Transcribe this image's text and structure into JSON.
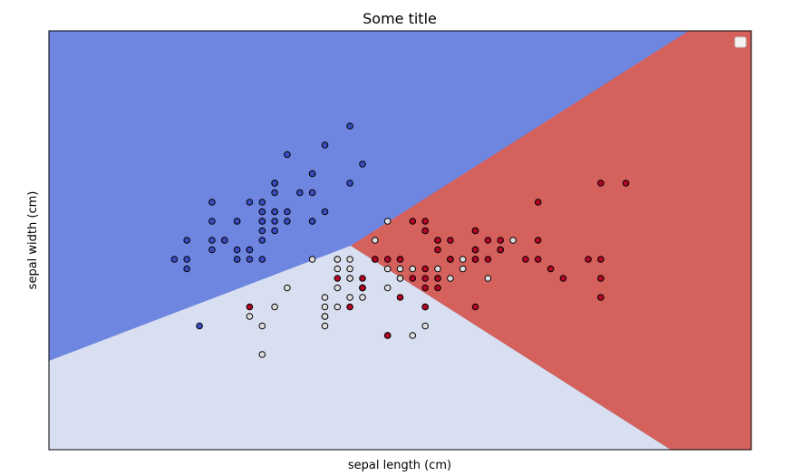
{
  "chart_data": {
    "type": "scatter",
    "title": "Some title",
    "xlabel": "sepal length (cm)",
    "ylabel": "sepal width (cm)",
    "xlim": [
      3.3,
      8.9
    ],
    "ylim": [
      1.0,
      5.4
    ],
    "x_ticks_visible": false,
    "y_ticks_visible": false,
    "grid": false,
    "legend": {
      "placement": "top-right",
      "entries": []
    },
    "decision_regions": [
      {
        "class": 0,
        "color": "#6f86e0"
      },
      {
        "class": 1,
        "color": "#d7dff0"
      },
      {
        "class": 2,
        "color": "#d5615c"
      }
    ],
    "series": [
      {
        "class": 0,
        "color": "#3b4cc0",
        "x": [
          5.1,
          4.9,
          4.7,
          4.6,
          5.0,
          5.4,
          4.6,
          5.0,
          4.4,
          4.9,
          5.4,
          4.8,
          4.8,
          4.3,
          5.8,
          5.7,
          5.4,
          5.1,
          5.7,
          5.1,
          5.4,
          5.1,
          4.6,
          5.1,
          4.8,
          5.0,
          5.0,
          5.2,
          5.2,
          4.7,
          4.8,
          5.4,
          5.2,
          5.5,
          4.9,
          5.0,
          5.5,
          4.9,
          4.4,
          5.1,
          5.0,
          4.5,
          4.4,
          5.0,
          5.1,
          4.8,
          5.1,
          4.6,
          5.3,
          5.0
        ],
        "y": [
          3.5,
          3.0,
          3.2,
          3.1,
          3.6,
          3.9,
          3.4,
          3.4,
          2.9,
          3.1,
          3.7,
          3.4,
          3.0,
          3.0,
          4.0,
          4.4,
          3.9,
          3.5,
          3.8,
          3.8,
          3.4,
          3.7,
          3.6,
          3.3,
          3.4,
          3.0,
          3.4,
          3.5,
          3.4,
          3.2,
          3.1,
          3.4,
          4.1,
          4.2,
          3.1,
          3.2,
          3.5,
          3.6,
          3.0,
          3.4,
          3.5,
          2.3,
          3.2,
          3.5,
          3.8,
          3.0,
          3.8,
          3.2,
          3.7,
          3.3
        ]
      },
      {
        "class": 1,
        "color": "#dddddd",
        "x": [
          7.0,
          6.4,
          6.9,
          5.5,
          6.5,
          5.7,
          6.3,
          4.9,
          6.6,
          5.2,
          5.0,
          5.9,
          6.0,
          6.1,
          5.6,
          6.7,
          5.6,
          5.8,
          6.2,
          5.6,
          5.9,
          6.1,
          6.3,
          6.1,
          6.4,
          6.6,
          6.8,
          6.7,
          6.0,
          5.7,
          5.5,
          5.5,
          5.8,
          6.0,
          5.4,
          6.0,
          6.7,
          6.3,
          5.6,
          5.5,
          5.5,
          6.1,
          5.8,
          5.0,
          5.6,
          5.7,
          5.7,
          6.2,
          5.1,
          5.7
        ],
        "y": [
          3.2,
          3.2,
          3.1,
          2.3,
          2.8,
          2.8,
          3.3,
          2.4,
          2.9,
          2.7,
          2.0,
          3.0,
          2.2,
          2.9,
          2.9,
          3.1,
          3.0,
          2.7,
          2.2,
          2.5,
          3.2,
          2.8,
          2.5,
          2.8,
          2.9,
          3.0,
          2.8,
          3.0,
          2.9,
          2.6,
          2.4,
          2.4,
          2.7,
          2.7,
          3.0,
          3.4,
          3.1,
          2.3,
          3.0,
          2.5,
          2.6,
          3.0,
          2.6,
          2.3,
          2.7,
          3.0,
          2.9,
          2.9,
          2.5,
          2.8
        ]
      },
      {
        "class": 2,
        "color": "#b40426",
        "x": [
          6.3,
          5.8,
          7.1,
          6.3,
          6.5,
          7.6,
          4.9,
          7.3,
          6.7,
          7.2,
          6.5,
          6.4,
          6.8,
          5.7,
          5.8,
          6.4,
          6.5,
          7.7,
          7.7,
          6.0,
          6.9,
          5.6,
          7.7,
          6.3,
          6.7,
          7.2,
          6.2,
          6.1,
          6.4,
          7.2,
          7.4,
          7.9,
          6.4,
          6.3,
          6.1,
          7.7,
          6.3,
          6.4,
          6.0,
          6.9,
          6.7,
          6.9,
          5.8,
          6.8,
          6.7,
          6.7,
          6.3,
          6.5,
          6.2,
          5.9
        ],
        "y": [
          3.3,
          2.7,
          3.0,
          2.9,
          3.0,
          3.0,
          2.5,
          2.9,
          2.5,
          3.6,
          3.2,
          2.7,
          3.0,
          2.5,
          2.8,
          3.2,
          3.0,
          3.8,
          2.6,
          2.2,
          3.2,
          2.8,
          2.8,
          2.7,
          3.3,
          3.2,
          2.8,
          3.0,
          2.8,
          3.0,
          2.8,
          3.8,
          2.8,
          2.8,
          2.6,
          3.0,
          3.4,
          3.1,
          3.0,
          3.1,
          3.1,
          3.1,
          2.7,
          3.2,
          3.3,
          3.0,
          2.5,
          3.0,
          3.4,
          3.0
        ]
      }
    ]
  }
}
